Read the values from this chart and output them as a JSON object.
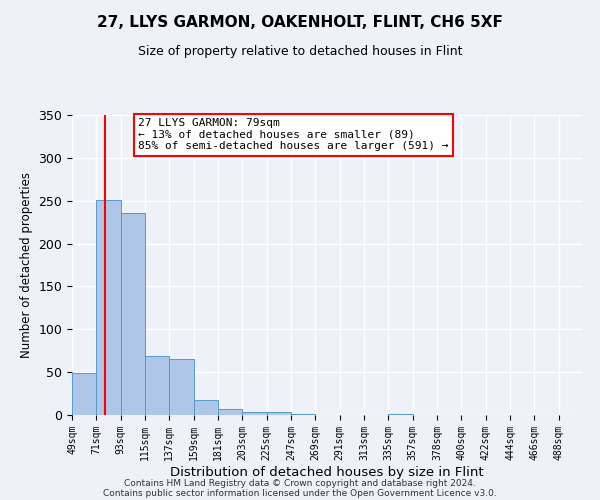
{
  "title": "27, LLYS GARMON, OAKENHOLT, FLINT, CH6 5XF",
  "subtitle": "Size of property relative to detached houses in Flint",
  "xlabel": "Distribution of detached houses by size in Flint",
  "ylabel": "Number of detached properties",
  "bar_left_edges": [
    49,
    71,
    93,
    115,
    137,
    159,
    181,
    203,
    225,
    247,
    269,
    291,
    313,
    335,
    357,
    378,
    400,
    422,
    444,
    466
  ],
  "bar_heights": [
    49,
    251,
    236,
    69,
    65,
    17,
    7,
    4,
    3,
    1,
    0,
    0,
    0,
    1,
    0,
    0,
    0,
    0,
    0,
    0
  ],
  "bin_width": 22,
  "tick_labels": [
    "49sqm",
    "71sqm",
    "93sqm",
    "115sqm",
    "137sqm",
    "159sqm",
    "181sqm",
    "203sqm",
    "225sqm",
    "247sqm",
    "269sqm",
    "291sqm",
    "313sqm",
    "335sqm",
    "357sqm",
    "378sqm",
    "400sqm",
    "422sqm",
    "444sqm",
    "466sqm",
    "488sqm"
  ],
  "bar_color": "#aec6e8",
  "bar_edgecolor": "#5599cc",
  "property_line_x": 79,
  "ylim": [
    0,
    350
  ],
  "yticks": [
    0,
    50,
    100,
    150,
    200,
    250,
    300,
    350
  ],
  "annotation_title": "27 LLYS GARMON: 79sqm",
  "annotation_line1": "← 13% of detached houses are smaller (89)",
  "annotation_line2": "85% of semi-detached houses are larger (591) →",
  "footer1": "Contains HM Land Registry data © Crown copyright and database right 2024.",
  "footer2": "Contains public sector information licensed under the Open Government Licence v3.0.",
  "background_color": "#eef2f8",
  "plot_bg_color": "#eef2f8"
}
